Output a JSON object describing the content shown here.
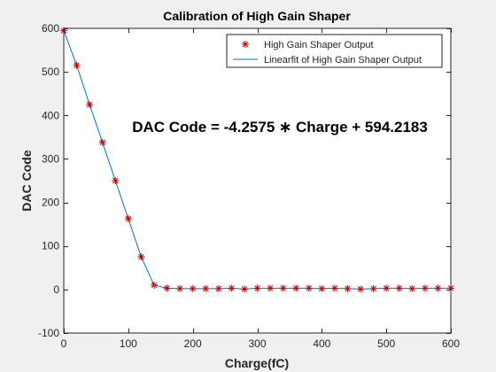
{
  "chart_data": {
    "type": "scatter",
    "title": "Calibration of High Gain Shaper",
    "xlabel": "Charge(fC)",
    "ylabel": "DAC Code",
    "xlim": [
      0,
      600
    ],
    "ylim": [
      -100,
      600
    ],
    "xticks": [
      0,
      100,
      200,
      300,
      400,
      500,
      600
    ],
    "yticks": [
      -100,
      0,
      100,
      200,
      300,
      400,
      500,
      600
    ],
    "xtick_labels": [
      "0",
      "100",
      "200",
      "300",
      "400",
      "500",
      "600"
    ],
    "ytick_labels": [
      "-100",
      "0",
      "100",
      "200",
      "300",
      "400",
      "500",
      "600"
    ],
    "grid": false,
    "legend_placement": "top-right",
    "annotation": "DAC Code = -4.2575 ∗ Charge + 594.2183",
    "series": [
      {
        "name": "High Gain Shaper Output",
        "kind": "scatter",
        "marker": "asterisk",
        "color": "#cc0000",
        "x": [
          0,
          20,
          40,
          60,
          80,
          100,
          120,
          140,
          160,
          180,
          200,
          220,
          240,
          260,
          280,
          300,
          320,
          340,
          360,
          380,
          400,
          420,
          440,
          460,
          480,
          500,
          520,
          540,
          560,
          580,
          600
        ],
        "y": [
          595,
          515,
          425,
          338,
          250,
          163,
          75,
          10,
          3,
          2,
          2,
          2,
          2,
          3,
          1,
          3,
          3,
          3,
          3,
          3,
          2,
          3,
          2,
          1,
          2,
          3,
          3,
          2,
          3,
          3,
          3
        ]
      },
      {
        "name": "Linearfit of High Gain Shaper Output",
        "kind": "line",
        "color": "#0072bd",
        "x": [
          0,
          20,
          40,
          60,
          80,
          100,
          120,
          140,
          160,
          180,
          200,
          220,
          240,
          260,
          280,
          300,
          320,
          340,
          360,
          380,
          400,
          420,
          440,
          460,
          480,
          500,
          520,
          540,
          560,
          580,
          600
        ],
        "y": [
          595,
          515,
          425,
          338,
          250,
          163,
          75,
          10,
          3,
          2,
          2,
          2,
          2,
          3,
          1,
          3,
          3,
          3,
          3,
          3,
          2,
          3,
          2,
          1,
          2,
          3,
          3,
          2,
          3,
          3,
          3
        ]
      }
    ]
  }
}
